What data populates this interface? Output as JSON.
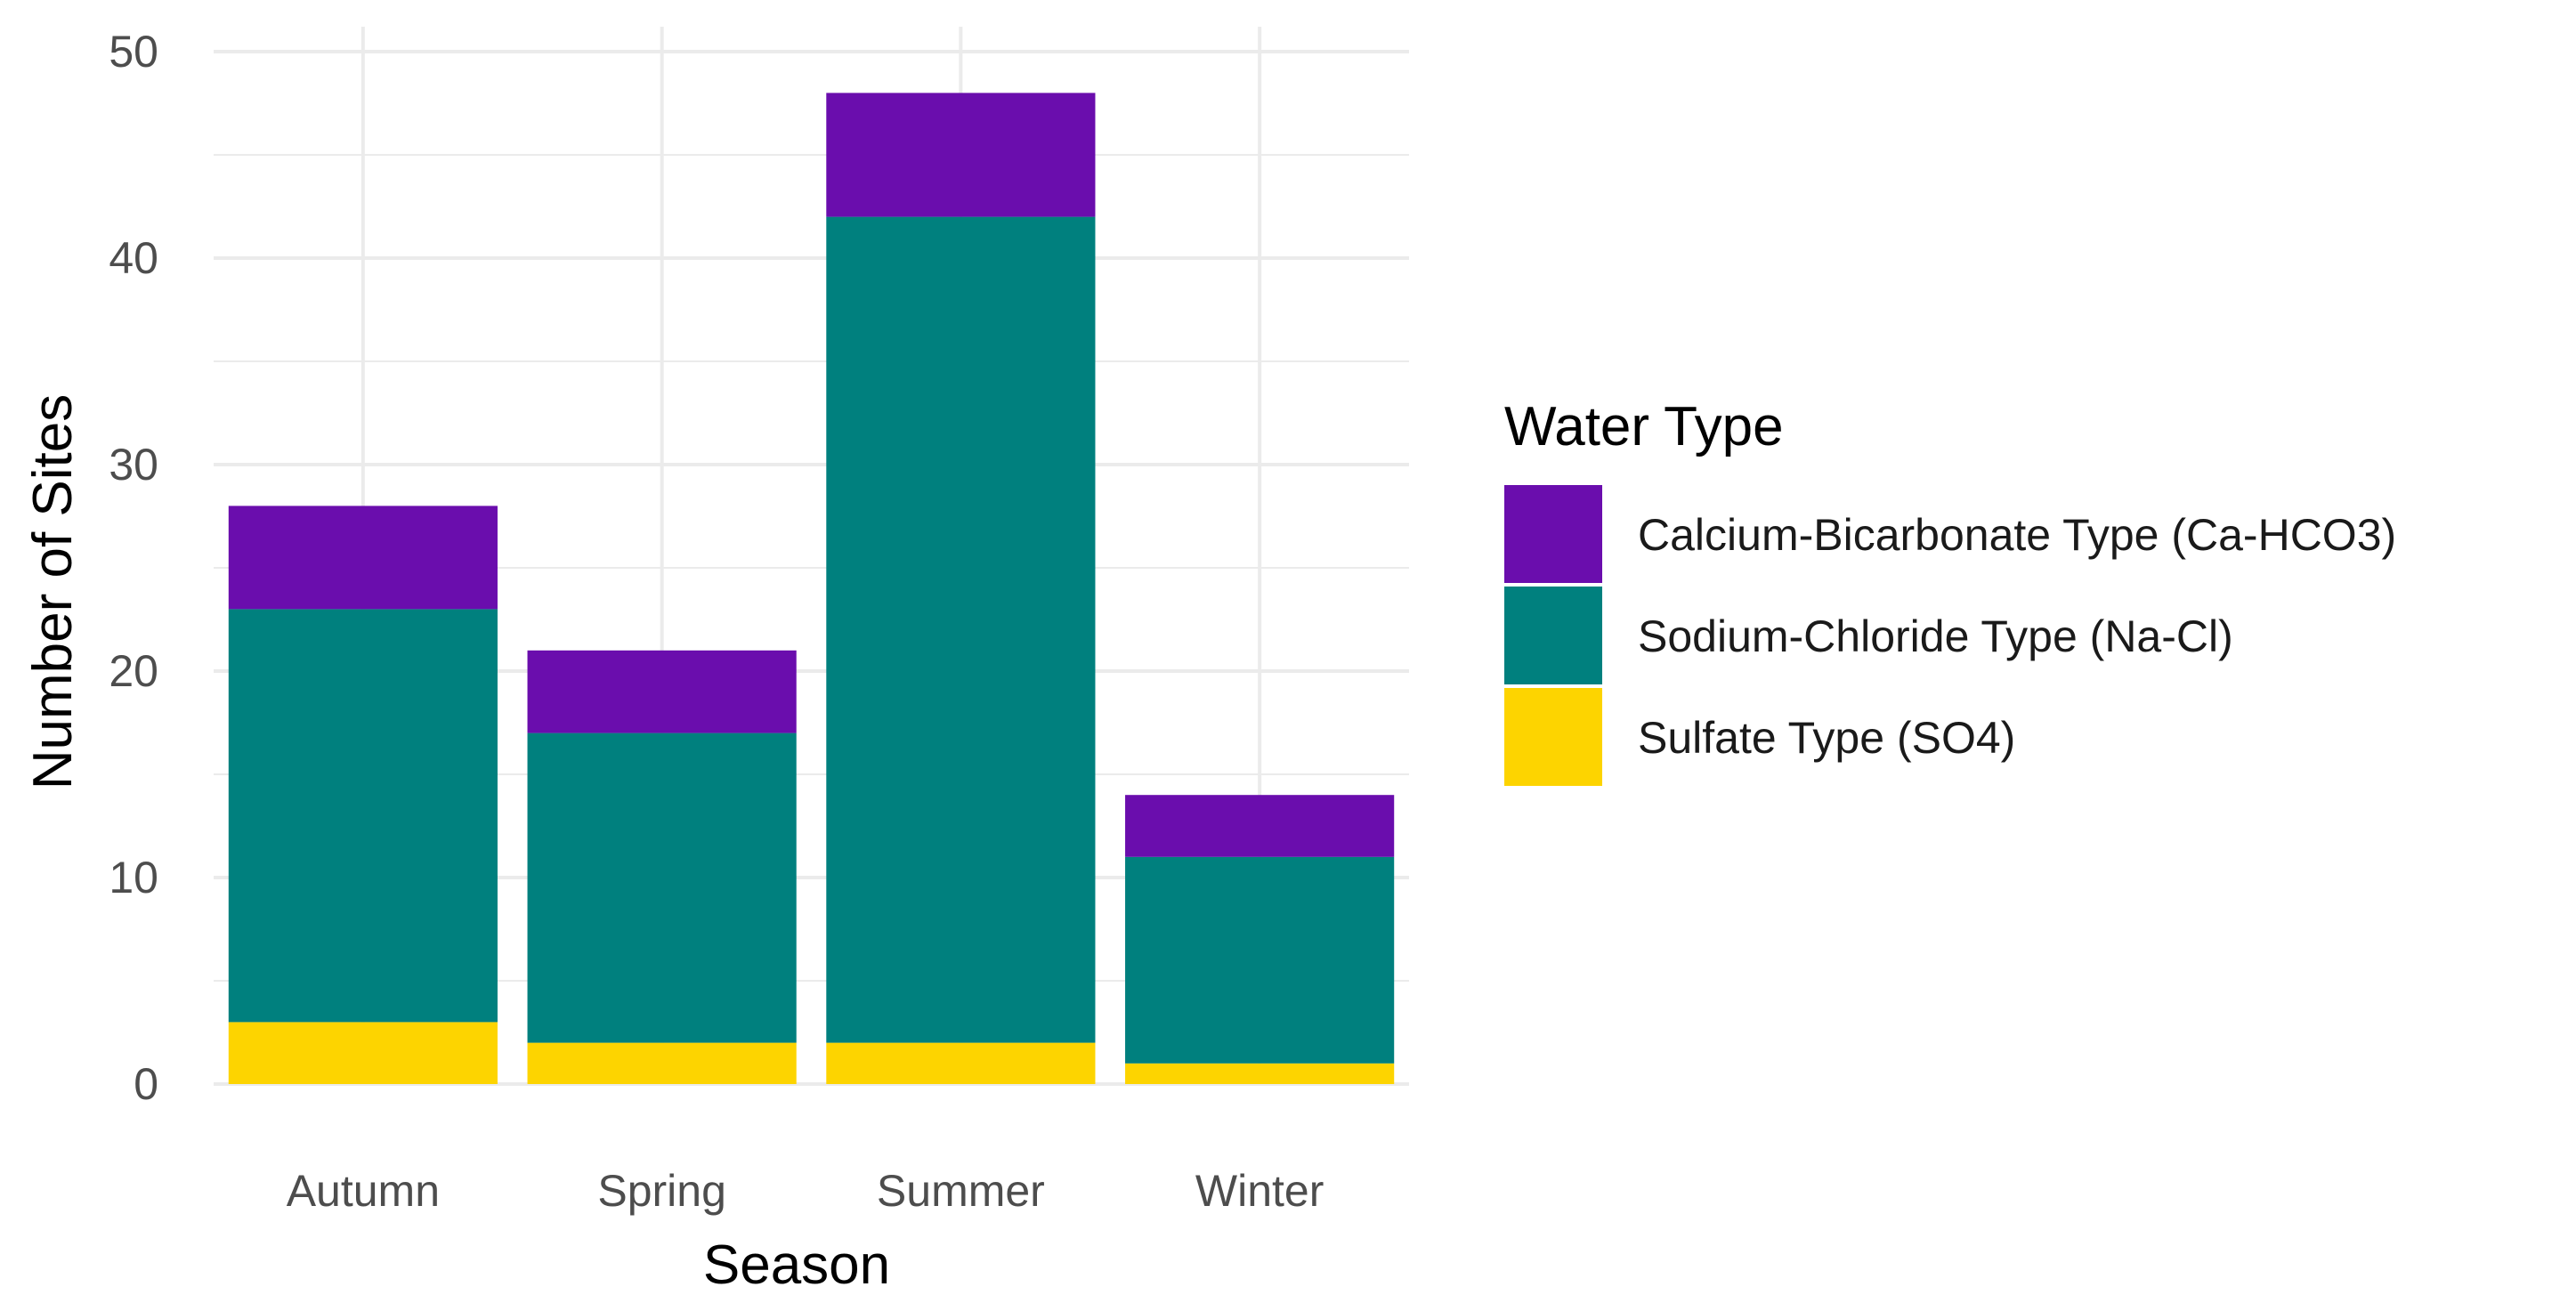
{
  "chart_data": {
    "type": "bar",
    "stacked": true,
    "categories": [
      "Autumn",
      "Spring",
      "Summer",
      "Winter"
    ],
    "series": [
      {
        "name": "Sulfate Type (SO4)",
        "values": [
          3,
          2,
          2,
          1
        ],
        "color": "#FDD400"
      },
      {
        "name": "Sodium-Chloride Type (Na-Cl)",
        "values": [
          20,
          15,
          40,
          10
        ],
        "color": "#00807E"
      },
      {
        "name": "Calcium-Bicarbonate Type (Ca-HCO3)",
        "values": [
          5,
          4,
          6,
          3
        ],
        "color": "#6A0DAD"
      }
    ],
    "legend_order": [
      "Calcium-Bicarbonate Type (Ca-HCO3)",
      "Sodium-Chloride Type (Na-Cl)",
      "Sulfate Type (SO4)"
    ],
    "title": "",
    "xlabel": "Season",
    "ylabel": "Number of Sites",
    "legend_title": "Water Type",
    "ylim": [
      0,
      50
    ],
    "yticks": [
      0,
      10,
      20,
      30,
      40,
      50
    ],
    "grid": true,
    "legend_position": "right"
  }
}
